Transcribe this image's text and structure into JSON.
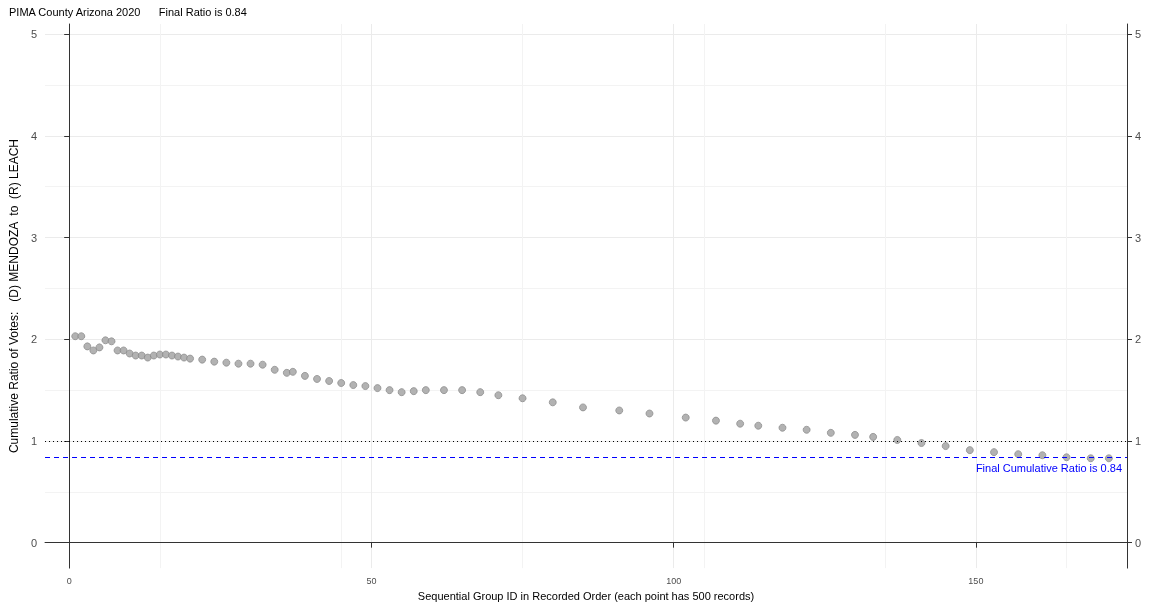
{
  "chart_data": {
    "type": "scatter",
    "title": "PIMA County Arizona 2020      Final Ratio is 0.84",
    "xlabel": "Sequential Group ID in Recorded Order (each point has 500 records)",
    "ylabel": "Cumulative Ratio of Votes:   (D) MENDOZA  to  (R) LEACH",
    "x": [
      1,
      2,
      3,
      4,
      5,
      6,
      7,
      8,
      9,
      10,
      11,
      12,
      13,
      14,
      15,
      16,
      17,
      18,
      19,
      20,
      22,
      24,
      26,
      28,
      30,
      32,
      34,
      36,
      37,
      39,
      41,
      43,
      45,
      47,
      49,
      51,
      53,
      55,
      57,
      59,
      62,
      65,
      68,
      71,
      75,
      80,
      85,
      91,
      96,
      102,
      107,
      111,
      114,
      118,
      122,
      126,
      130,
      133,
      137,
      141,
      145,
      149,
      153,
      157,
      161,
      165,
      169,
      172
    ],
    "series": [
      {
        "color": "#aaaaaa",
        "values": [
          2.03,
          2.03,
          1.93,
          1.89,
          1.92,
          1.99,
          1.98,
          1.89,
          1.89,
          1.86,
          1.84,
          1.84,
          1.82,
          1.84,
          1.85,
          1.85,
          1.84,
          1.83,
          1.82,
          1.81,
          1.8,
          1.78,
          1.77,
          1.76,
          1.76,
          1.75,
          1.7,
          1.67,
          1.68,
          1.64,
          1.61,
          1.59,
          1.57,
          1.55,
          1.54,
          1.52,
          1.5,
          1.48,
          1.49,
          1.5,
          1.5,
          1.5,
          1.48,
          1.45,
          1.42,
          1.38,
          1.33,
          1.3,
          1.27,
          1.23,
          1.2,
          1.17,
          1.15,
          1.13,
          1.11,
          1.08,
          1.06,
          1.04,
          1.01,
          0.98,
          0.95,
          0.91,
          0.89,
          0.87,
          0.86,
          0.84,
          0.83,
          0.83
        ]
      }
    ],
    "xlim": [
      -4,
      175
    ],
    "xticks": [
      0,
      50,
      100,
      150
    ],
    "ylim": [
      -0.25,
      5.1
    ],
    "yticks": [
      0,
      1,
      2,
      3,
      4,
      5
    ],
    "y2lim": [
      -0.25,
      5.1
    ],
    "y2ticks": [
      0,
      1,
      2,
      3,
      4,
      5
    ],
    "marker": "circle",
    "grid": true,
    "ref_lines": [
      {
        "axis": "y",
        "value": 1,
        "color": "#000000",
        "line_style": "dotted"
      },
      {
        "axis": "y",
        "value": 0.84,
        "label": "Final Cumulative Ratio is 0.84",
        "color": "#0000ff",
        "line_style": "dashed"
      }
    ]
  }
}
